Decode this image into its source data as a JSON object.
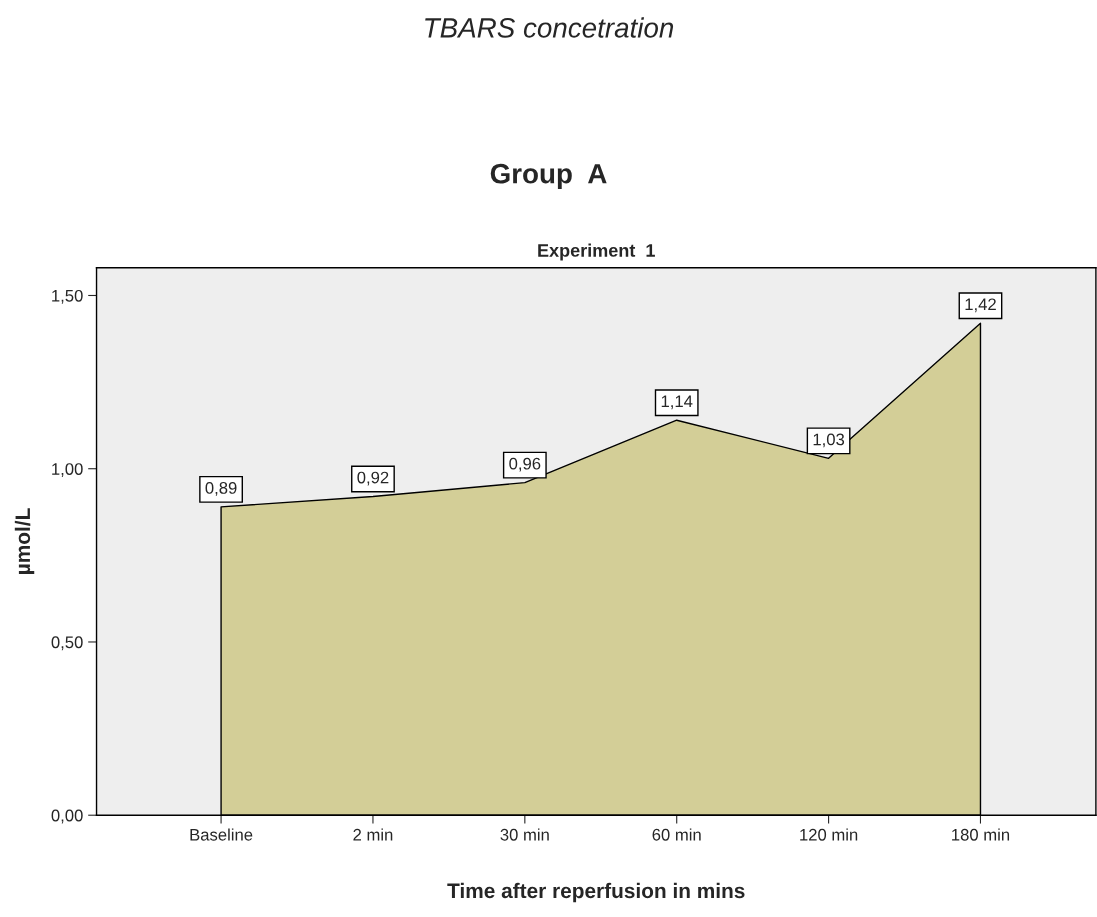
{
  "chart_data": {
    "type": "area",
    "title": "TBARS concetration",
    "subtitle": "Group  A",
    "annotations": [
      "Experiment  1"
    ],
    "xlabel": "Time after reperfusion in mins",
    "ylabel": "µmol/L",
    "categories": [
      "Baseline",
      "2 min",
      "30 min",
      "60 min",
      "120 min",
      "180 min"
    ],
    "series": [
      {
        "color": "#d3ce97",
        "values": [
          0.89,
          0.92,
          0.96,
          1.14,
          1.03,
          1.42
        ],
        "value_labels": [
          "0,89",
          "0,92",
          "0,96",
          "1,14",
          "1,03",
          "1,42"
        ]
      }
    ],
    "ylim": [
      0,
      1.58
    ],
    "yticks": [
      {
        "value": 0,
        "label": "0,00"
      },
      {
        "value": 0.5,
        "label": "0,50"
      },
      {
        "value": 1.0,
        "label": "1,00"
      },
      {
        "value": 1.5,
        "label": "1,50"
      }
    ],
    "grid": false,
    "legend": false
  }
}
